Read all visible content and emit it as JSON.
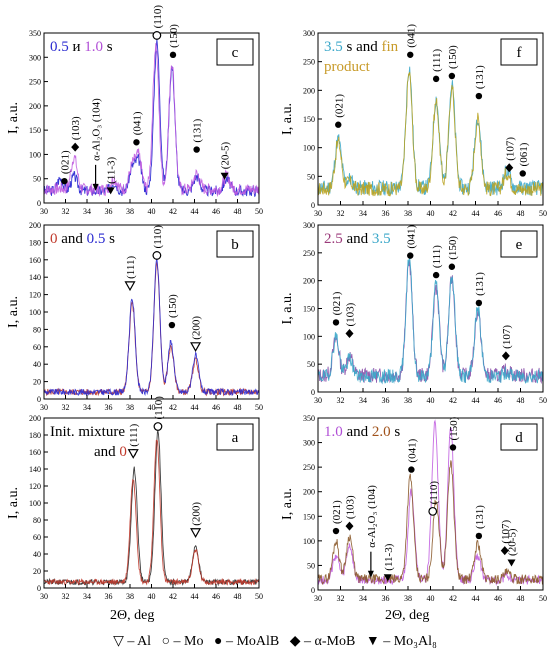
{
  "figure": {
    "xlabel": "2Θ, deg",
    "ylabel": "I, a.u.",
    "legend_items": [
      {
        "marker": "triangle-open-down",
        "text": "– Al"
      },
      {
        "marker": "circle-open",
        "text": "– Mo"
      },
      {
        "marker": "circle-filled",
        "text": "– MoAlB"
      },
      {
        "marker": "diamond-filled",
        "text": "– α-MoB"
      },
      {
        "marker": "triangle-filled-down",
        "text": "– Mo₃Al₈"
      }
    ]
  },
  "chart_data": [
    {
      "id": "c",
      "type": "line",
      "panel_label": "c",
      "xlim": [
        30,
        50
      ],
      "ylim": [
        0,
        350
      ],
      "xticks": [
        30,
        32,
        34,
        36,
        38,
        40,
        42,
        44,
        46,
        48,
        50
      ],
      "yticks": [
        0,
        50,
        100,
        150,
        200,
        250,
        300,
        350
      ],
      "title_parts": [
        {
          "text": "0.5",
          "color": "#2b2bd0"
        },
        {
          "text": " и ",
          "color": "#000000"
        },
        {
          "text": "1.0",
          "color": "#b14fd6"
        },
        {
          "text": " s",
          "color": "#000000"
        }
      ],
      "series": [
        {
          "color": "#1f1fd0",
          "peaks": [
            [
              31.5,
              25
            ],
            [
              32.8,
              55
            ],
            [
              36.5,
              18
            ],
            [
              38.2,
              70
            ],
            [
              38.8,
              85
            ],
            [
              40.5,
              330
            ],
            [
              41.9,
              280
            ],
            [
              44.2,
              55
            ],
            [
              47,
              25
            ]
          ],
          "base": 25,
          "seed": 3
        },
        {
          "color": "#c05ce0",
          "peaks": [
            [
              31.5,
              30
            ],
            [
              32.8,
              95
            ],
            [
              36.5,
              22
            ],
            [
              38.2,
              75
            ],
            [
              38.8,
              95
            ],
            [
              40.4,
              325
            ],
            [
              41.9,
              290
            ],
            [
              44.2,
              60
            ],
            [
              47,
              28
            ]
          ],
          "base": 28,
          "seed": 7
        }
      ],
      "annotations": [
        {
          "x": 31.9,
          "y": 45,
          "marker": "circle-filled",
          "label": "(021)"
        },
        {
          "x": 32.9,
          "y": 115,
          "marker": "diamond-filled",
          "label": "(103)"
        },
        {
          "x": 34.8,
          "y": 25,
          "marker": "arrow",
          "label": "α-Al₂O₃ (104)"
        },
        {
          "x": 36.2,
          "y": 25,
          "marker": "triangle-filled-down",
          "label": "(11-3)"
        },
        {
          "x": 38.6,
          "y": 125,
          "marker": "circle-filled",
          "label": "(041)"
        },
        {
          "x": 40.5,
          "y": 345,
          "marker": "circle-open",
          "label": "(110)"
        },
        {
          "x": 42.0,
          "y": 305,
          "marker": "circle-filled",
          "label": "(150)"
        },
        {
          "x": 44.2,
          "y": 110,
          "marker": "circle-filled",
          "label": "(131)"
        },
        {
          "x": 46.8,
          "y": 55,
          "marker": "triangle-filled-down",
          "label": "(20-5)"
        }
      ]
    },
    {
      "id": "f",
      "type": "line",
      "panel_label": "f",
      "xlim": [
        30,
        50
      ],
      "ylim": [
        0,
        300
      ],
      "xticks": [
        30,
        32,
        34,
        36,
        38,
        40,
        42,
        44,
        46,
        48,
        50
      ],
      "yticks": [
        0,
        50,
        100,
        150,
        200,
        250,
        300
      ],
      "title_parts": [
        {
          "text": "3.5",
          "color": "#3aa7c9"
        },
        {
          "text": " s and ",
          "color": "#000000"
        },
        {
          "text": "fin",
          "color": "#c89b2a"
        }
      ],
      "subtitle": "product",
      "subtitle_color": "#c89b2a",
      "series": [
        {
          "color": "#3aa7c9",
          "peaks": [
            [
              31.8,
              115
            ],
            [
              32.8,
              45
            ],
            [
              38.1,
              240
            ],
            [
              40.5,
              185
            ],
            [
              41.9,
              210
            ],
            [
              44.2,
              155
            ],
            [
              46.8,
              30
            ]
          ],
          "base": 30,
          "seed": 11
        },
        {
          "color": "#b9a321",
          "peaks": [
            [
              31.8,
              110
            ],
            [
              32.8,
              40
            ],
            [
              38.1,
              230
            ],
            [
              40.5,
              180
            ],
            [
              41.9,
              205
            ],
            [
              44.2,
              150
            ],
            [
              46.8,
              28
            ]
          ],
          "base": 28,
          "seed": 17
        }
      ],
      "annotations": [
        {
          "x": 31.8,
          "y": 140,
          "marker": "circle-filled",
          "label": "(021)"
        },
        {
          "x": 38.2,
          "y": 262,
          "marker": "circle-filled",
          "label": "(041)"
        },
        {
          "x": 40.5,
          "y": 220,
          "marker": "circle-filled",
          "label": "(111)"
        },
        {
          "x": 41.9,
          "y": 225,
          "marker": "circle-filled",
          "label": "(150)"
        },
        {
          "x": 44.3,
          "y": 190,
          "marker": "circle-filled",
          "label": "(131)"
        },
        {
          "x": 47.0,
          "y": 65,
          "marker": "diamond-filled",
          "label": "(107)"
        },
        {
          "x": 48.2,
          "y": 55,
          "marker": "circle-filled",
          "label": "(061)"
        }
      ]
    },
    {
      "id": "b",
      "type": "line",
      "panel_label": "b",
      "xlim": [
        30,
        50
      ],
      "ylim": [
        0,
        200
      ],
      "xticks": [
        30,
        32,
        34,
        36,
        38,
        40,
        42,
        44,
        46,
        48,
        50
      ],
      "yticks": [
        0,
        20,
        40,
        60,
        80,
        100,
        120,
        140,
        160,
        180,
        200
      ],
      "title_parts": [
        {
          "text": "0",
          "color": "#c0392b"
        },
        {
          "text": " and ",
          "color": "#000000"
        },
        {
          "text": "0.5",
          "color": "#2b2bd0"
        },
        {
          "text": " s",
          "color": "#000000"
        }
      ],
      "series": [
        {
          "color": "#c0392b",
          "peaks": [
            [
              38.2,
              110
            ],
            [
              40.5,
              155
            ],
            [
              41.8,
              60
            ],
            [
              44.1,
              45
            ]
          ],
          "base": 8,
          "seed": 5
        },
        {
          "color": "#2b2bd0",
          "peaks": [
            [
              38.2,
              115
            ],
            [
              40.5,
              160
            ],
            [
              41.8,
              65
            ],
            [
              44.1,
              50
            ]
          ],
          "base": 8,
          "seed": 9
        }
      ],
      "annotations": [
        {
          "x": 38.0,
          "y": 130,
          "marker": "triangle-open-down",
          "label": "(111)"
        },
        {
          "x": 40.5,
          "y": 165,
          "marker": "circle-open",
          "label": "(110)"
        },
        {
          "x": 41.9,
          "y": 85,
          "marker": "circle-filled",
          "label": "(150)"
        },
        {
          "x": 44.1,
          "y": 60,
          "marker": "triangle-open-down",
          "label": "(200)"
        }
      ]
    },
    {
      "id": "e",
      "type": "line",
      "panel_label": "e",
      "xlim": [
        30,
        50
      ],
      "ylim": [
        0,
        300
      ],
      "xticks": [
        30,
        32,
        34,
        36,
        38,
        40,
        42,
        44,
        46,
        48,
        50
      ],
      "yticks": [
        0,
        50,
        100,
        150,
        200,
        250,
        300
      ],
      "title_parts": [
        {
          "text": "2.5",
          "color": "#9b3a7a"
        },
        {
          "text": " and ",
          "color": "#000000"
        },
        {
          "text": "3.5",
          "color": "#3aa7c9"
        }
      ],
      "series": [
        {
          "color": "#8a4fa8",
          "peaks": [
            [
              31.6,
              95
            ],
            [
              32.8,
              65
            ],
            [
              38.1,
              235
            ],
            [
              40.5,
              190
            ],
            [
              41.9,
              205
            ],
            [
              44.2,
              145
            ],
            [
              46.8,
              40
            ]
          ],
          "base": 30,
          "seed": 13
        },
        {
          "color": "#3aa7c9",
          "peaks": [
            [
              31.6,
              100
            ],
            [
              32.8,
              60
            ],
            [
              38.1,
              240
            ],
            [
              40.5,
              195
            ],
            [
              41.9,
              210
            ],
            [
              44.2,
              150
            ],
            [
              46.8,
              35
            ]
          ],
          "base": 28,
          "seed": 19
        }
      ],
      "annotations": [
        {
          "x": 31.6,
          "y": 125,
          "marker": "circle-filled",
          "label": "(021)"
        },
        {
          "x": 32.8,
          "y": 105,
          "marker": "diamond-filled",
          "label": "(103)"
        },
        {
          "x": 38.2,
          "y": 245,
          "marker": "circle-filled",
          "label": "(041)"
        },
        {
          "x": 40.5,
          "y": 210,
          "marker": "circle-filled",
          "label": "(111)"
        },
        {
          "x": 41.9,
          "y": 225,
          "marker": "circle-filled",
          "label": "(150)"
        },
        {
          "x": 44.3,
          "y": 160,
          "marker": "circle-filled",
          "label": "(131)"
        },
        {
          "x": 46.7,
          "y": 65,
          "marker": "diamond-filled",
          "label": "(107)"
        }
      ]
    },
    {
      "id": "a",
      "type": "line",
      "panel_label": "a",
      "xlim": [
        30,
        50
      ],
      "ylim": [
        0,
        200
      ],
      "xticks": [
        30,
        32,
        34,
        36,
        38,
        40,
        42,
        44,
        46,
        48,
        50
      ],
      "yticks": [
        0,
        20,
        40,
        60,
        80,
        100,
        120,
        140,
        160,
        180,
        200
      ],
      "title_parts": [
        {
          "text": "Init. mixture",
          "color": "#000000"
        }
      ],
      "subtitle_parts": [
        {
          "text": "and ",
          "color": "#000000"
        },
        {
          "text": "0",
          "color": "#c0392b"
        },
        {
          "text": " s",
          "color": "#000000"
        }
      ],
      "series": [
        {
          "color": "#2a2a2a",
          "peaks": [
            [
              38.4,
              140
            ],
            [
              40.6,
              185
            ],
            [
              44.1,
              50
            ]
          ],
          "base": 7,
          "seed": 21
        },
        {
          "color": "#c0392b",
          "peaks": [
            [
              38.3,
              130
            ],
            [
              40.5,
              175
            ],
            [
              44.1,
              45
            ]
          ],
          "base": 7,
          "seed": 23
        }
      ],
      "annotations": [
        {
          "x": 38.3,
          "y": 158,
          "marker": "triangle-open-down",
          "label": "(111)"
        },
        {
          "x": 40.6,
          "y": 190,
          "marker": "circle-open",
          "label": "(110)"
        },
        {
          "x": 44.1,
          "y": 65,
          "marker": "triangle-open-down",
          "label": "(200)"
        }
      ]
    },
    {
      "id": "d",
      "type": "line",
      "panel_label": "d",
      "xlim": [
        30,
        50
      ],
      "ylim": [
        0,
        350
      ],
      "xticks": [
        30,
        32,
        34,
        36,
        38,
        40,
        42,
        44,
        46,
        48,
        50
      ],
      "yticks": [
        0,
        50,
        100,
        150,
        200,
        250,
        300,
        350
      ],
      "title_parts": [
        {
          "text": "1.0",
          "color": "#b14fd6"
        },
        {
          "text": " and ",
          "color": "#000000"
        },
        {
          "text": "2.0",
          "color": "#a0521b"
        },
        {
          "text": " s",
          "color": "#000000"
        }
      ],
      "series": [
        {
          "color": "#c05ce0",
          "peaks": [
            [
              31.6,
              70
            ],
            [
              32.8,
              90
            ],
            [
              38.3,
              200
            ],
            [
              40.4,
              340
            ],
            [
              41.8,
              330
            ],
            [
              44.2,
              70
            ],
            [
              46.8,
              30
            ]
          ],
          "base": 20,
          "seed": 27
        },
        {
          "color": "#8b5a2b",
          "peaks": [
            [
              31.6,
              100
            ],
            [
              32.8,
              110
            ],
            [
              38.2,
              230
            ],
            [
              40.5,
              185
            ],
            [
              41.8,
              260
            ],
            [
              44.2,
              95
            ],
            [
              46.8,
              35
            ]
          ],
          "base": 22,
          "seed": 29
        }
      ],
      "annotations": [
        {
          "x": 31.6,
          "y": 120,
          "marker": "circle-filled",
          "label": "(021)"
        },
        {
          "x": 32.8,
          "y": 130,
          "marker": "diamond-filled",
          "label": "(103)"
        },
        {
          "x": 34.7,
          "y": 25,
          "marker": "arrow",
          "label": "α-Al₂O₃ (104)"
        },
        {
          "x": 36.2,
          "y": 25,
          "marker": "triangle-filled-down",
          "label": "(11-3)"
        },
        {
          "x": 38.3,
          "y": 245,
          "marker": "circle-filled",
          "label": "(041)"
        },
        {
          "x": 40.2,
          "y": 160,
          "marker": "circle-open",
          "label": "(110)"
        },
        {
          "x": 42.0,
          "y": 290,
          "marker": "circle-filled",
          "label": "(150)"
        },
        {
          "x": 44.3,
          "y": 110,
          "marker": "circle-filled",
          "label": "(131)"
        },
        {
          "x": 46.6,
          "y": 80,
          "marker": "diamond-filled",
          "label": "(107)"
        },
        {
          "x": 47.2,
          "y": 55,
          "marker": "triangle-filled-down",
          "label": "(20-5)"
        }
      ]
    }
  ]
}
